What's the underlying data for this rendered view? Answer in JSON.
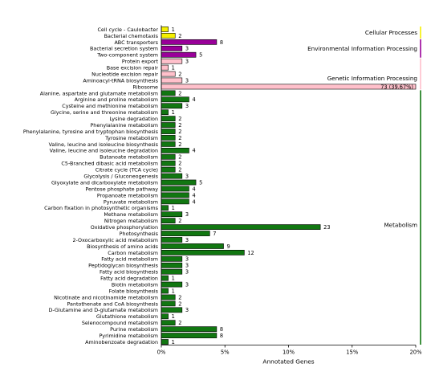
{
  "chart_data": {
    "type": "bar",
    "orientation": "horizontal",
    "xlabel": "Annotated Genes",
    "xlim": [
      0,
      20
    ],
    "xticks": [
      "0%",
      "5%",
      "10%",
      "15%",
      "20%"
    ],
    "grid": false,
    "categories": [
      {
        "name": "Cell cycle - Caulobacter",
        "count": 1,
        "label": "1",
        "group": "Cellular Processes"
      },
      {
        "name": "Bacterial chemotaxis",
        "count": 2,
        "label": "2",
        "group": "Cellular Processes"
      },
      {
        "name": "ABC transporters",
        "count": 8,
        "label": "8",
        "group": "Environmental Information Processing"
      },
      {
        "name": "Bacterial secretion system",
        "count": 3,
        "label": "3",
        "group": "Environmental Information Processing"
      },
      {
        "name": "Two-component system",
        "count": 5,
        "label": "5",
        "group": "Environmental Information Processing"
      },
      {
        "name": "Protein export",
        "count": 3,
        "label": "3",
        "group": "Genetic Information Processing"
      },
      {
        "name": "Base excision repair",
        "count": 1,
        "label": "1",
        "group": "Genetic Information Processing"
      },
      {
        "name": "Nucleotide excision repair",
        "count": 2,
        "label": "2",
        "group": "Genetic Information Processing"
      },
      {
        "name": "Aminoacyl-tRNA biosynthesis",
        "count": 3,
        "label": "3",
        "group": "Genetic Information Processing"
      },
      {
        "name": "Ribosome",
        "count": 73,
        "label": "73 (39.67%)",
        "group": "Genetic Information Processing"
      },
      {
        "name": "Alanine, aspartate and glutamate metabolism",
        "count": 2,
        "label": "2",
        "group": "Metabolism"
      },
      {
        "name": "Arginine and proline metabolism",
        "count": 4,
        "label": "4",
        "group": "Metabolism"
      },
      {
        "name": "Cysteine and methionine metabolism",
        "count": 3,
        "label": "3",
        "group": "Metabolism"
      },
      {
        "name": "Glycine, serine and threonine metabolism",
        "count": 1,
        "label": "1",
        "group": "Metabolism"
      },
      {
        "name": "Lysine degradation",
        "count": 2,
        "label": "2",
        "group": "Metabolism"
      },
      {
        "name": "Phenylalanine metabolism",
        "count": 2,
        "label": "2",
        "group": "Metabolism"
      },
      {
        "name": "Phenylalanine, tyrosine and tryptophan biosynthesis",
        "count": 2,
        "label": "2",
        "group": "Metabolism"
      },
      {
        "name": "Tyrosine metabolism",
        "count": 2,
        "label": "2",
        "group": "Metabolism"
      },
      {
        "name": "Valine, leucine and isoleucine biosynthesis",
        "count": 2,
        "label": "2",
        "group": "Metabolism"
      },
      {
        "name": "Valine, leucine and isoleucine degradation",
        "count": 4,
        "label": "4",
        "group": "Metabolism"
      },
      {
        "name": "Butanoate metabolism",
        "count": 2,
        "label": "2",
        "group": "Metabolism"
      },
      {
        "name": "C5-Branched dibasic acid metabolism",
        "count": 2,
        "label": "2",
        "group": "Metabolism"
      },
      {
        "name": "Citrate cycle (TCA cycle)",
        "count": 2,
        "label": "2",
        "group": "Metabolism"
      },
      {
        "name": "Glycolysis / Gluconeogenesis",
        "count": 3,
        "label": "3",
        "group": "Metabolism"
      },
      {
        "name": "Glyoxylate and dicarboxylate metabolism",
        "count": 5,
        "label": "5",
        "group": "Metabolism"
      },
      {
        "name": "Pentose phosphate pathway",
        "count": 4,
        "label": "4",
        "group": "Metabolism"
      },
      {
        "name": "Propanoate metabolism",
        "count": 4,
        "label": "4",
        "group": "Metabolism"
      },
      {
        "name": "Pyruvate metabolism",
        "count": 4,
        "label": "4",
        "group": "Metabolism"
      },
      {
        "name": "Carbon fixation in photosynthetic organisms",
        "count": 1,
        "label": "1",
        "group": "Metabolism"
      },
      {
        "name": "Methane metabolism",
        "count": 3,
        "label": "3",
        "group": "Metabolism"
      },
      {
        "name": "Nitrogen metabolism",
        "count": 2,
        "label": "2",
        "group": "Metabolism"
      },
      {
        "name": "Oxidative phosphorylation",
        "count": 23,
        "label": "23",
        "group": "Metabolism"
      },
      {
        "name": "Photosynthesis",
        "count": 7,
        "label": "7",
        "group": "Metabolism"
      },
      {
        "name": "2-Oxocarboxylic acid metabolism",
        "count": 3,
        "label": "3",
        "group": "Metabolism"
      },
      {
        "name": "Biosynthesis of amino acids",
        "count": 9,
        "label": "9",
        "group": "Metabolism"
      },
      {
        "name": "Carbon metabolism",
        "count": 12,
        "label": "12",
        "group": "Metabolism"
      },
      {
        "name": "Fatty acid metabolism",
        "count": 3,
        "label": "3",
        "group": "Metabolism"
      },
      {
        "name": "Peptidoglycan biosynthesis",
        "count": 3,
        "label": "3",
        "group": "Metabolism"
      },
      {
        "name": "Fatty acid biosynthesis",
        "count": 3,
        "label": "3",
        "group": "Metabolism"
      },
      {
        "name": "Fatty acid degradation",
        "count": 1,
        "label": "1",
        "group": "Metabolism"
      },
      {
        "name": "Biotin metabolism",
        "count": 3,
        "label": "3",
        "group": "Metabolism"
      },
      {
        "name": "Folate biosynthesis",
        "count": 1,
        "label": "1",
        "group": "Metabolism"
      },
      {
        "name": "Nicotinate and nicotinamide metabolism",
        "count": 2,
        "label": "2",
        "group": "Metabolism"
      },
      {
        "name": "Pantothenate and CoA biosynthesis",
        "count": 2,
        "label": "2",
        "group": "Metabolism"
      },
      {
        "name": "D-Glutamine and D-glutamate metabolism",
        "count": 3,
        "label": "3",
        "group": "Metabolism"
      },
      {
        "name": "Glutathione metabolism",
        "count": 1,
        "label": "1",
        "group": "Metabolism"
      },
      {
        "name": "Selenocompound metabolism",
        "count": 2,
        "label": "2",
        "group": "Metabolism"
      },
      {
        "name": "Purine metabolism",
        "count": 8,
        "label": "8",
        "group": "Metabolism"
      },
      {
        "name": "Pyrimidine metabolism",
        "count": 8,
        "label": "8",
        "group": "Metabolism"
      },
      {
        "name": "Aminobenzoate degradation",
        "count": 1,
        "label": "1",
        "group": "Metabolism"
      }
    ],
    "percent_per_gene": 0.5435,
    "truncated_bars": [
      "Ribosome"
    ],
    "groups": [
      {
        "name": "Cellular Processes",
        "color": "#f5f000"
      },
      {
        "name": "Environmental Information Processing",
        "color": "#990099"
      },
      {
        "name": "Genetic Information Processing",
        "color": "#ffc0cb"
      },
      {
        "name": "Metabolism",
        "color": "#117711"
      }
    ]
  }
}
